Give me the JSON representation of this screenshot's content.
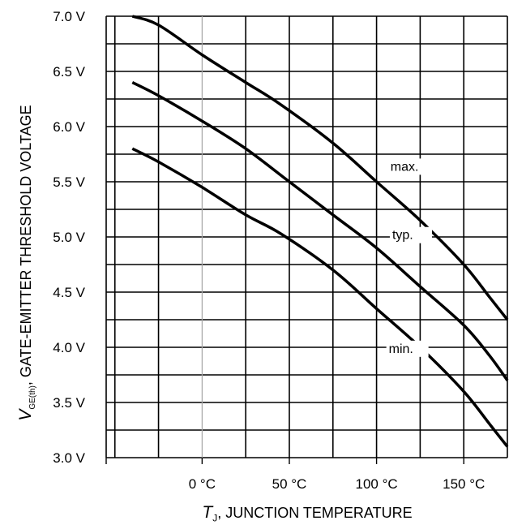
{
  "chart_data": {
    "type": "line",
    "xlabel": {
      "symbol": "T",
      "subscript": "J",
      "text": ", JUNCTION TEMPERATURE"
    },
    "ylabel": {
      "symbol": "V",
      "subscript": "GE(th)",
      "text": ", GATE-EMITTER THRESHOLD VOLTAGE"
    },
    "xlim": [
      -55,
      175
    ],
    "ylim": [
      3.0,
      7.0
    ],
    "x_ticks": [
      {
        "value": 0,
        "label": "0 °C"
      },
      {
        "value": 50,
        "label": "50 °C"
      },
      {
        "value": 100,
        "label": "100 °C"
      },
      {
        "value": 150,
        "label": "150 °C"
      }
    ],
    "y_ticks": [
      {
        "value": 3.0,
        "label": "3.0 V"
      },
      {
        "value": 3.5,
        "label": "3.5 V"
      },
      {
        "value": 4.0,
        "label": "4.0 V"
      },
      {
        "value": 4.5,
        "label": "4.5 V"
      },
      {
        "value": 5.0,
        "label": "5.0 V"
      },
      {
        "value": 5.5,
        "label": "5.5 V"
      },
      {
        "value": 6.0,
        "label": "6.0 V"
      },
      {
        "value": 6.5,
        "label": "6.5 V"
      },
      {
        "value": 7.0,
        "label": "7.0 V"
      }
    ],
    "series": [
      {
        "name": "max.",
        "label_at": [
          108,
          5.6
        ],
        "x": [
          -40,
          -25,
          0,
          25,
          45,
          75,
          100,
          125,
          150,
          165,
          175
        ],
        "y": [
          7.0,
          6.92,
          6.65,
          6.4,
          6.2,
          5.85,
          5.5,
          5.15,
          4.75,
          4.45,
          4.25
        ]
      },
      {
        "name": "typ.",
        "label_at": [
          109,
          4.98
        ],
        "x": [
          -40,
          -25,
          0,
          25,
          50,
          75,
          100,
          125,
          150,
          165,
          175
        ],
        "y": [
          6.4,
          6.28,
          6.05,
          5.8,
          5.5,
          5.2,
          4.9,
          4.55,
          4.2,
          3.92,
          3.7
        ]
      },
      {
        "name": "min.",
        "label_at": [
          107,
          3.95
        ],
        "x": [
          -40,
          -25,
          0,
          25,
          45,
          75,
          100,
          125,
          150,
          165,
          175
        ],
        "y": [
          5.8,
          5.68,
          5.45,
          5.2,
          5.03,
          4.7,
          4.35,
          4.0,
          3.6,
          3.3,
          3.1
        ]
      }
    ]
  }
}
